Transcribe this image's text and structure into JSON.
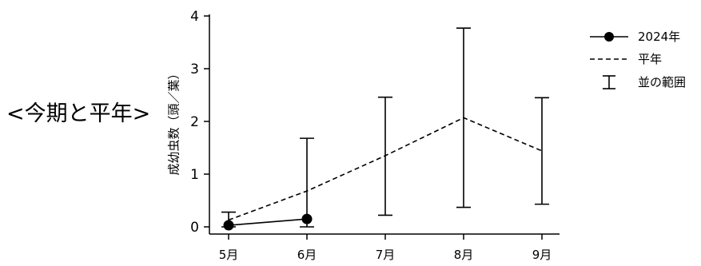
{
  "heading": "<今期と平年>",
  "chart_data": {
    "type": "line",
    "title": "",
    "xlabel": "",
    "ylabel": "成幼虫数（頭／葉）",
    "categories": [
      "5月",
      "6月",
      "7月",
      "8月",
      "9月"
    ],
    "ylim": [
      0,
      4
    ],
    "yticks": [
      0,
      1,
      2,
      3,
      4
    ],
    "grid": false,
    "legend_position": "top-right",
    "series": [
      {
        "name": "2024年",
        "style": "solid-marker",
        "values": [
          0.03,
          0.15,
          null,
          null,
          null
        ]
      },
      {
        "name": "平年",
        "style": "dashed",
        "values": [
          0.13,
          0.68,
          1.35,
          2.07,
          1.44
        ]
      },
      {
        "name": "並の範囲",
        "style": "errorbar",
        "low": [
          0.0,
          0.0,
          0.22,
          0.37,
          0.43
        ],
        "high": [
          0.28,
          1.68,
          2.46,
          3.77,
          2.45
        ]
      }
    ]
  }
}
